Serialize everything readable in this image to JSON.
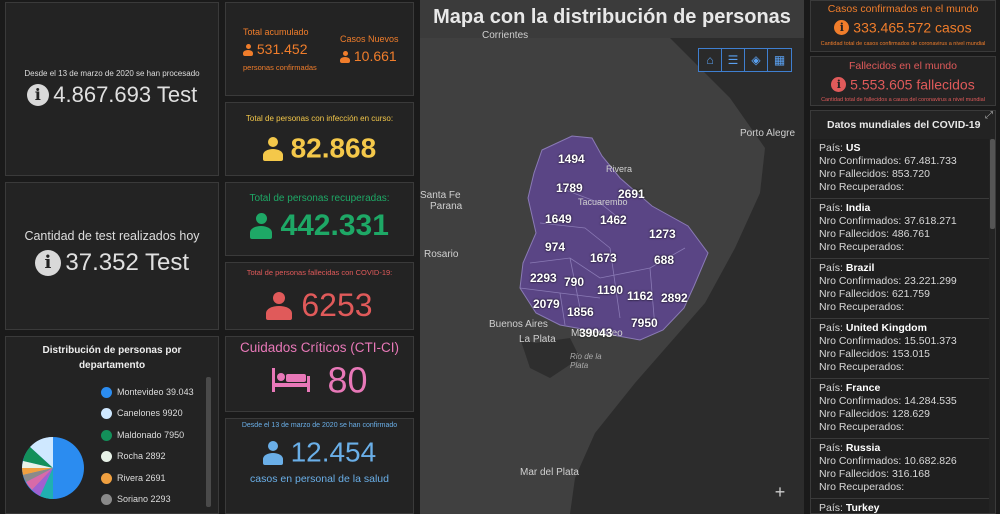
{
  "tests_total": {
    "caption": "Desde el 13 de marzo de 2020 se han procesado",
    "value": "4.867.693 Test",
    "icon": "info-icon"
  },
  "tests_today": {
    "caption": "Cantidad de test realizados hoy",
    "value": "37.352 Test",
    "icon": "info-icon"
  },
  "accumulated": {
    "label": "Total acumulado",
    "value": "531.452",
    "sub": "personas confirmadas",
    "new_label": "Casos Nuevos",
    "new_value": "10.661"
  },
  "active": {
    "label": "Total de personas con infección en curso:",
    "value": "82.868"
  },
  "recovered": {
    "label": "Total de personas recuperadas:",
    "value": "442.331"
  },
  "deceased": {
    "label": "Total de personas fallecidas con COVID-19:",
    "value": "6253"
  },
  "critical": {
    "label": "Cuidados Críticos (CTI-CI)",
    "value": "80"
  },
  "health_staff": {
    "caption": "Desde el 13 de marzo de 2020 se han confirmado",
    "value": "12.454",
    "sub": "casos en personal de la salud"
  },
  "distribution": {
    "title": "Distribución de personas por departamento",
    "items": [
      {
        "name": "Montevideo",
        "value": "39.043",
        "color": "#2b8cf0"
      },
      {
        "name": "Canelones",
        "value": "9920",
        "color": "#cfe8ff"
      },
      {
        "name": "Maldonado",
        "value": "7950",
        "color": "#13905a"
      },
      {
        "name": "Rocha",
        "value": "2892",
        "color": "#e8f2e8"
      },
      {
        "name": "Rivera",
        "value": "2691",
        "color": "#f0a040"
      },
      {
        "name": "Soriano",
        "value": "2293",
        "color": "#8a8a8a"
      }
    ]
  },
  "map": {
    "title": "Mapa con la distribución de personas",
    "cities": [
      "Corrientes",
      "Porto Alegre",
      "Santa Fe",
      "Parana",
      "Rosario",
      "Buenos Aires",
      "La Plata",
      "Montevideo",
      "Rio de la Plata",
      "Mar del Plata",
      "Rivera",
      "Tacuarembo"
    ],
    "departments": [
      "1494",
      "1789",
      "2691",
      "1649",
      "1462",
      "1273",
      "974",
      "1673",
      "688",
      "2293",
      "790",
      "1190",
      "1162",
      "2892",
      "2079",
      "1856",
      "39043",
      "7950"
    ],
    "zoom_in": "+"
  },
  "world_confirmed": {
    "label": "Casos confirmados en el mundo",
    "value": "333.465.572 casos",
    "sub": "Cantidad total de casos confirmados de coronavirus a nivel mundial"
  },
  "world_deaths": {
    "label": "Fallecidos en el mundo",
    "value": "5.553.605 fallecidos",
    "sub": "Cantidad total de fallecidos a causa del coronavirus a nivel mundial"
  },
  "world_list": {
    "title": "Datos mundiales del COVID-19",
    "country_label": "País:",
    "confirmed_label": "Nro Confirmados:",
    "deaths_label": "Nro Fallecidos:",
    "recovered_label": "Nro Recuperados:",
    "items": [
      {
        "country": "US",
        "confirmed": "67.481.733",
        "deaths": "853.720",
        "recovered": ""
      },
      {
        "country": "India",
        "confirmed": "37.618.271",
        "deaths": "486.761",
        "recovered": ""
      },
      {
        "country": "Brazil",
        "confirmed": "23.221.299",
        "deaths": "621.759",
        "recovered": ""
      },
      {
        "country": "United Kingdom",
        "confirmed": "15.501.373",
        "deaths": "153.015",
        "recovered": ""
      },
      {
        "country": "France",
        "confirmed": "14.284.535",
        "deaths": "128.629",
        "recovered": ""
      },
      {
        "country": "Russia",
        "confirmed": "10.682.826",
        "deaths": "316.168",
        "recovered": ""
      },
      {
        "country": "Turkey",
        "confirmed": "",
        "deaths": "",
        "recovered": ""
      }
    ]
  }
}
